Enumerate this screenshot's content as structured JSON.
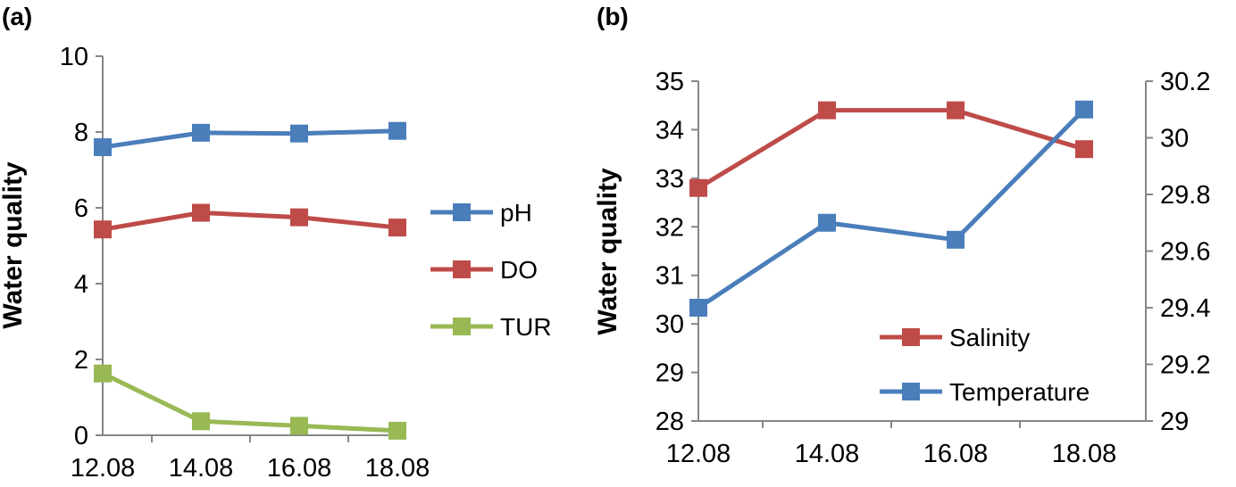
{
  "chart_data": [
    {
      "panel_label": "(a)",
      "type": "line",
      "x": [
        "12.08",
        "14.08",
        "16.08",
        "18.08"
      ],
      "ylabel": "Water quality",
      "ylim": [
        0,
        10
      ],
      "yticks": [
        "0",
        "2",
        "4",
        "6",
        "8",
        "10"
      ],
      "legend_position": "right",
      "series": [
        {
          "name": "pH",
          "color": "#4a7ebb",
          "values": [
            7.6,
            7.98,
            7.96,
            8.03
          ]
        },
        {
          "name": "DO",
          "color": "#be4b48",
          "values": [
            5.43,
            5.87,
            5.75,
            5.48
          ]
        },
        {
          "name": "TUR",
          "color": "#98b954",
          "values": [
            1.63,
            0.37,
            0.25,
            0.12
          ]
        }
      ]
    },
    {
      "panel_label": "(b)",
      "type": "line",
      "x": [
        "12.08",
        "14.08",
        "16.08",
        "18.08"
      ],
      "ylabel": "Water quality",
      "ylim": [
        28,
        35
      ],
      "yticks": [
        "28",
        "29",
        "30",
        "31",
        "32",
        "33",
        "34",
        "35"
      ],
      "y2lim": [
        29,
        30.2
      ],
      "y2ticks": [
        "29",
        "29.2",
        "29.4",
        "29.6",
        "29.8",
        "30",
        "30.2"
      ],
      "legend_position": "bottom-right",
      "series": [
        {
          "name": "Salinity",
          "color": "#be4b48",
          "axis": "left",
          "values": [
            32.8,
            34.4,
            34.4,
            33.6
          ]
        },
        {
          "name": "Temperature",
          "color": "#4a7ebb",
          "axis": "right",
          "values": [
            29.4,
            29.7,
            29.64,
            30.1
          ]
        }
      ]
    }
  ]
}
